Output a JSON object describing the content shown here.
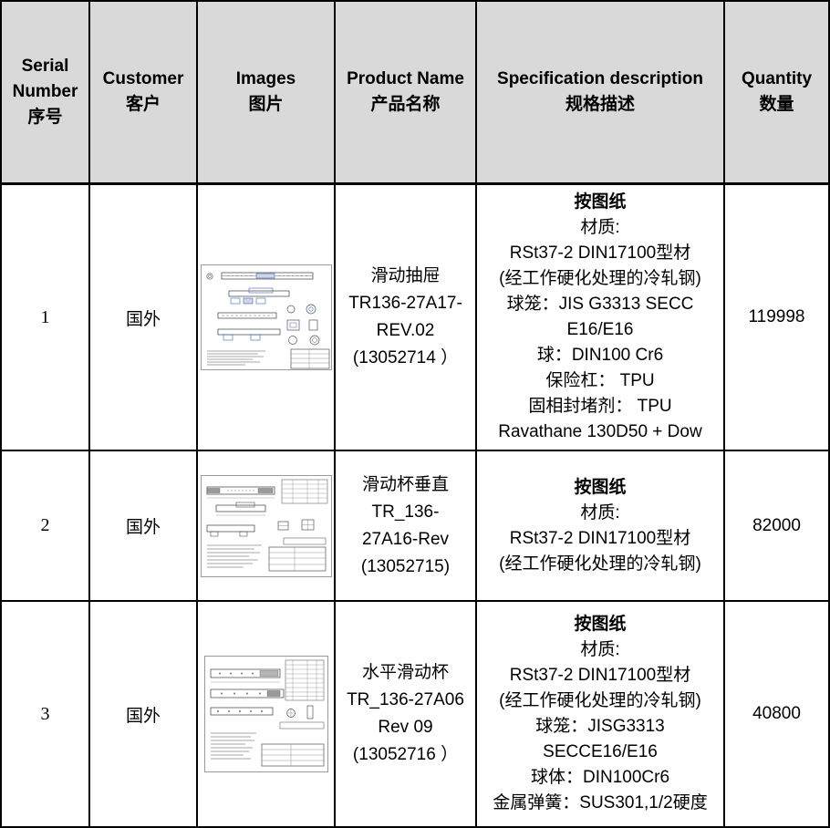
{
  "colors": {
    "header_bg": "#D9D9D9",
    "border": "#000000"
  },
  "header": {
    "columns": [
      {
        "en": "Serial Number",
        "zh": "序号"
      },
      {
        "en": "Customer",
        "zh": "客户"
      },
      {
        "en": "Images",
        "zh": "图片"
      },
      {
        "en": "Product Name",
        "zh": "产品名称"
      },
      {
        "en": "Specification description",
        "zh": "规格描述"
      },
      {
        "en": "Quantity",
        "zh": "数量"
      }
    ]
  },
  "rows": [
    {
      "serial": "1",
      "customer": "国外",
      "image": "cad-drawing-slide-drawer",
      "product_lines": [
        "滑动抽屉",
        "TR136-27A17-",
        "REV.02",
        "(13052714 ）"
      ],
      "spec_title": "按图纸",
      "spec_lines": [
        "材质:",
        "RSt37-2 DIN17100型材",
        "(经工作硬化处理的冷轧钢)",
        "球笼：JIS G3313 SECC",
        "E16/E16",
        "球：DIN100 Cr6",
        "保险杠： TPU",
        "固相封堵剂： TPU",
        "Ravathane 130D50 + Dow"
      ],
      "quantity": "119998"
    },
    {
      "serial": "2",
      "customer": "国外",
      "image": "cad-drawing-vertical-slide-cup",
      "product_lines": [
        "滑动杯垂直",
        "TR_136-",
        "27A16-Rev",
        "(13052715)"
      ],
      "spec_title": "按图纸",
      "spec_lines": [
        "材质:",
        "RSt37-2 DIN17100型材",
        "(经工作硬化处理的冷轧钢)"
      ],
      "quantity": "82000"
    },
    {
      "serial": "3",
      "customer": "国外",
      "image": "cad-drawing-horizontal-slide-cup",
      "product_lines": [
        "水平滑动杯",
        "TR_136-27A06",
        "Rev 09",
        "(13052716 ）"
      ],
      "spec_title": "按图纸",
      "spec_lines": [
        "材质:",
        "RSt37-2 DIN17100型材",
        "(经工作硬化处理的冷轧钢)",
        "球笼：JISG3313",
        "SECCE16/E16",
        "球体：DIN100Cr6",
        "金属弹簧：SUS301,1/2硬度"
      ],
      "quantity": "40800"
    }
  ]
}
